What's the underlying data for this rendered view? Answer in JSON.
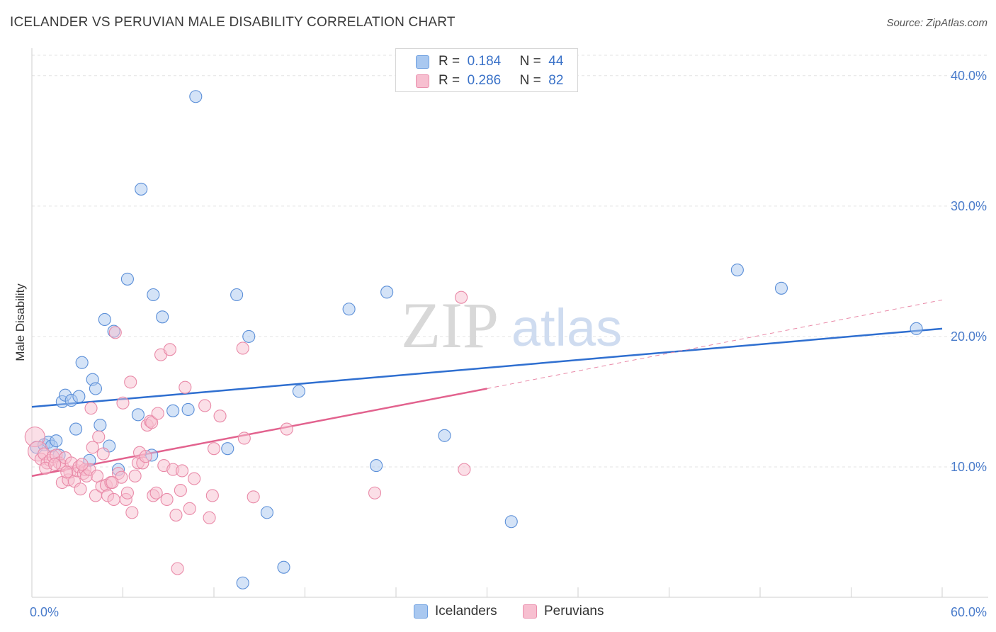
{
  "title": "ICELANDER VS PERUVIAN MALE DISABILITY CORRELATION CHART",
  "source": "Source: ZipAtlas.com",
  "watermark": {
    "zip": "ZIP",
    "atlas": "atlas"
  },
  "legend": {
    "r_label": "R =",
    "n_label": "N =",
    "rows": [
      {
        "r": "0.184",
        "n": "44",
        "color": "#a9c8f0",
        "border": "#6d9fe0"
      },
      {
        "r": "0.286",
        "n": "82",
        "color": "#f7bfd0",
        "border": "#ea8fad"
      }
    ]
  },
  "chart_data": {
    "type": "scatter",
    "title": "ICELANDER VS PERUVIAN MALE DISABILITY CORRELATION CHART",
    "xlabel": "",
    "ylabel": "Male Disability",
    "xlim": [
      0,
      60
    ],
    "ylim": [
      0,
      42
    ],
    "x_tick_labels": [
      "0.0%",
      "60.0%"
    ],
    "x_minor_ticks": [
      0,
      6,
      12,
      18,
      24,
      30,
      36,
      42,
      48,
      54,
      60
    ],
    "y_ticks": [
      10,
      20,
      30,
      40
    ],
    "y_tick_labels": [
      "10.0%",
      "20.0%",
      "30.0%",
      "40.0%"
    ],
    "grid": true,
    "series": [
      {
        "name": "Icelanders",
        "color": "#a9c8f0",
        "stroke": "#5b8fd8",
        "trend": {
          "x": [
            0,
            60
          ],
          "y": [
            14.6,
            20.6
          ],
          "color": "#2f6fd0"
        },
        "points": [
          [
            0.3,
            11.5
          ],
          [
            0.8,
            11.7
          ],
          [
            1.1,
            11.9
          ],
          [
            1.3,
            11.6
          ],
          [
            1.6,
            12.0
          ],
          [
            1.8,
            10.9
          ],
          [
            2.0,
            15.0
          ],
          [
            2.2,
            15.5
          ],
          [
            2.6,
            15.1
          ],
          [
            2.9,
            12.9
          ],
          [
            3.1,
            15.4
          ],
          [
            3.3,
            18.0
          ],
          [
            3.8,
            10.5
          ],
          [
            4.0,
            16.7
          ],
          [
            4.2,
            16.0
          ],
          [
            4.5,
            13.2
          ],
          [
            4.8,
            21.3
          ],
          [
            5.1,
            11.6
          ],
          [
            5.4,
            20.4
          ],
          [
            5.7,
            9.8
          ],
          [
            6.3,
            24.4
          ],
          [
            7.0,
            14.0
          ],
          [
            7.2,
            31.3
          ],
          [
            7.9,
            10.9
          ],
          [
            8.0,
            23.2
          ],
          [
            8.6,
            21.5
          ],
          [
            9.3,
            14.3
          ],
          [
            10.3,
            14.4
          ],
          [
            10.8,
            38.4
          ],
          [
            12.9,
            11.4
          ],
          [
            13.5,
            23.2
          ],
          [
            13.9,
            1.1
          ],
          [
            14.3,
            20.0
          ],
          [
            15.5,
            6.5
          ],
          [
            16.6,
            2.3
          ],
          [
            17.6,
            15.8
          ],
          [
            20.9,
            22.1
          ],
          [
            22.7,
            10.1
          ],
          [
            23.4,
            23.4
          ],
          [
            27.2,
            12.4
          ],
          [
            31.6,
            5.8
          ],
          [
            46.5,
            25.1
          ],
          [
            49.4,
            23.7
          ],
          [
            58.3,
            20.6
          ]
        ]
      },
      {
        "name": "Peruvians",
        "color": "#f7bfd0",
        "stroke": "#e98aa8",
        "trend": {
          "x": [
            0,
            30
          ],
          "y": [
            9.3,
            16.0
          ],
          "color": "#e2628e"
        },
        "trend_extension": {
          "x": [
            30,
            60
          ],
          "y": [
            16.0,
            22.8
          ]
        },
        "points": [
          [
            0.2,
            12.3
          ],
          [
            0.4,
            11.2
          ],
          [
            0.6,
            10.6
          ],
          [
            0.8,
            11.0
          ],
          [
            1.0,
            10.3
          ],
          [
            1.2,
            10.5
          ],
          [
            1.4,
            10.8
          ],
          [
            1.6,
            10.9
          ],
          [
            1.8,
            10.3
          ],
          [
            2.0,
            10.1
          ],
          [
            2.0,
            8.8
          ],
          [
            2.2,
            10.7
          ],
          [
            2.4,
            9.0
          ],
          [
            2.5,
            9.6
          ],
          [
            2.6,
            10.3
          ],
          [
            2.8,
            8.9
          ],
          [
            3.0,
            9.7
          ],
          [
            3.1,
            10.0
          ],
          [
            3.2,
            8.3
          ],
          [
            3.4,
            9.5
          ],
          [
            3.5,
            9.8
          ],
          [
            3.6,
            9.3
          ],
          [
            3.8,
            9.8
          ],
          [
            3.9,
            14.5
          ],
          [
            4.0,
            11.5
          ],
          [
            4.2,
            7.8
          ],
          [
            4.4,
            12.3
          ],
          [
            4.6,
            8.5
          ],
          [
            4.7,
            11.0
          ],
          [
            4.9,
            8.6
          ],
          [
            5.0,
            7.8
          ],
          [
            5.2,
            8.8
          ],
          [
            5.4,
            7.5
          ],
          [
            5.5,
            20.3
          ],
          [
            5.7,
            9.5
          ],
          [
            5.9,
            9.2
          ],
          [
            6.0,
            14.9
          ],
          [
            6.2,
            7.5
          ],
          [
            6.3,
            8.0
          ],
          [
            6.5,
            16.5
          ],
          [
            6.6,
            6.5
          ],
          [
            6.8,
            9.3
          ],
          [
            7.0,
            10.3
          ],
          [
            7.1,
            11.1
          ],
          [
            7.3,
            10.3
          ],
          [
            7.5,
            10.8
          ],
          [
            7.6,
            13.2
          ],
          [
            7.8,
            13.5
          ],
          [
            7.9,
            13.4
          ],
          [
            8.0,
            7.8
          ],
          [
            8.2,
            8.0
          ],
          [
            8.3,
            14.1
          ],
          [
            8.5,
            18.6
          ],
          [
            8.7,
            10.1
          ],
          [
            8.9,
            7.5
          ],
          [
            9.1,
            19.0
          ],
          [
            9.3,
            9.8
          ],
          [
            9.5,
            6.3
          ],
          [
            9.6,
            2.2
          ],
          [
            9.8,
            8.2
          ],
          [
            9.9,
            9.7
          ],
          [
            10.1,
            16.1
          ],
          [
            10.4,
            6.8
          ],
          [
            10.7,
            9.1
          ],
          [
            11.4,
            14.7
          ],
          [
            11.7,
            6.1
          ],
          [
            11.9,
            7.8
          ],
          [
            12.0,
            11.4
          ],
          [
            12.4,
            13.9
          ],
          [
            13.9,
            19.1
          ],
          [
            14.0,
            12.2
          ],
          [
            14.6,
            7.7
          ],
          [
            16.8,
            12.9
          ],
          [
            22.6,
            8.0
          ],
          [
            28.3,
            23.0
          ],
          [
            28.5,
            9.8
          ],
          [
            0.9,
            9.9
          ],
          [
            1.5,
            10.2
          ],
          [
            2.3,
            9.6
          ],
          [
            3.3,
            10.2
          ],
          [
            4.3,
            9.3
          ],
          [
            5.3,
            8.8
          ]
        ]
      }
    ]
  }
}
